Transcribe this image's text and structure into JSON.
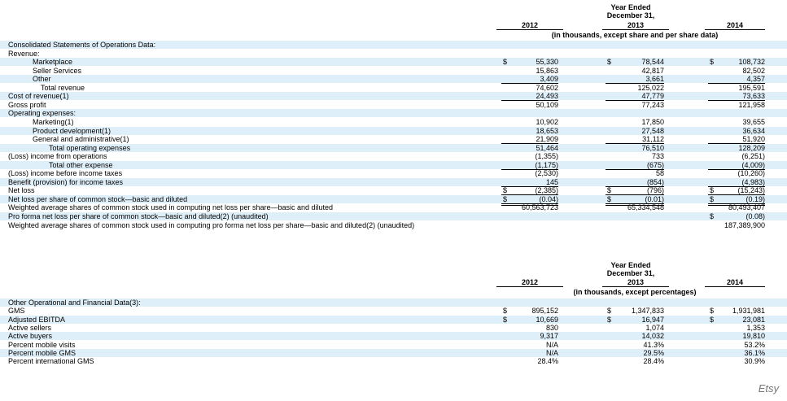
{
  "table1": {
    "header_line1": "Year Ended",
    "header_line2": "December 31,",
    "years": [
      "2012",
      "2013",
      "2014"
    ],
    "units": "(in thousands, except share and per share data)",
    "rows": [
      {
        "label": "Consolidated Statements of Operations Data:",
        "indent": 0,
        "values": [
          "",
          "",
          ""
        ],
        "dollar": false,
        "shade": true,
        "rule": ""
      },
      {
        "label": "Revenue:",
        "indent": 0,
        "values": [
          "",
          "",
          ""
        ],
        "dollar": false,
        "shade": false,
        "rule": ""
      },
      {
        "label": "Marketplace",
        "indent": 2,
        "values": [
          "55,330",
          "78,544",
          "108,732"
        ],
        "dollar": true,
        "shade": true,
        "rule": ""
      },
      {
        "label": "Seller Services",
        "indent": 2,
        "values": [
          "15,863",
          "42,817",
          "82,502"
        ],
        "dollar": false,
        "shade": false,
        "rule": ""
      },
      {
        "label": "Other",
        "indent": 2,
        "values": [
          "3,409",
          "3,661",
          "4,357"
        ],
        "dollar": false,
        "shade": true,
        "rule": "ul"
      },
      {
        "label": "Total revenue",
        "indent": 3,
        "values": [
          "74,602",
          "125,022",
          "195,591"
        ],
        "dollar": false,
        "shade": false,
        "rule": ""
      },
      {
        "label": "Cost of revenue(1)",
        "indent": 0,
        "values": [
          "24,493",
          "47,779",
          "73,633"
        ],
        "dollar": false,
        "shade": true,
        "rule": "ul"
      },
      {
        "label": "Gross profit",
        "indent": 0,
        "values": [
          "50,109",
          "77,243",
          "121,958"
        ],
        "dollar": false,
        "shade": false,
        "rule": ""
      },
      {
        "label": "Operating expenses:",
        "indent": 0,
        "values": [
          "",
          "",
          ""
        ],
        "dollar": false,
        "shade": true,
        "rule": ""
      },
      {
        "label": "Marketing(1)",
        "indent": 2,
        "values": [
          "10,902",
          "17,850",
          "39,655"
        ],
        "dollar": false,
        "shade": false,
        "rule": ""
      },
      {
        "label": "Product development(1)",
        "indent": 2,
        "values": [
          "18,653",
          "27,548",
          "36,634"
        ],
        "dollar": false,
        "shade": true,
        "rule": ""
      },
      {
        "label": "General and administrative(1)",
        "indent": 2,
        "values": [
          "21,909",
          "31,112",
          "51,920"
        ],
        "dollar": false,
        "shade": false,
        "rule": "ul"
      },
      {
        "label": "Total operating expenses",
        "indent": 4,
        "values": [
          "51,464",
          "76,510",
          "128,209"
        ],
        "dollar": false,
        "shade": true,
        "rule": ""
      },
      {
        "label": "(Loss) income from operations",
        "indent": 0,
        "values": [
          "(1,355)",
          "733",
          "(6,251)"
        ],
        "dollar": false,
        "shade": false,
        "rule": ""
      },
      {
        "label": "Total other expense",
        "indent": 4,
        "values": [
          "(1,175)",
          "(675)",
          "(4,009)"
        ],
        "dollar": false,
        "shade": true,
        "rule": "ul"
      },
      {
        "label": "(Loss) income before income taxes",
        "indent": 0,
        "values": [
          "(2,530)",
          "58",
          "(10,260)"
        ],
        "dollar": false,
        "shade": false,
        "rule": ""
      },
      {
        "label": "Benefit (provision) for income taxes",
        "indent": 0,
        "values": [
          "145",
          "(854)",
          "(4,983)"
        ],
        "dollar": false,
        "shade": true,
        "rule": "ul"
      },
      {
        "label": "Net loss",
        "indent": 0,
        "values": [
          "(2,385)",
          "(796)",
          "(15,243)"
        ],
        "dollar": true,
        "shade": false,
        "rule": "dul"
      },
      {
        "label": "Net loss per share of common stock—basic and diluted",
        "indent": 0,
        "values": [
          "(0.04)",
          "(0.01)",
          "(0.19)"
        ],
        "dollar": true,
        "shade": true,
        "rule": "dul"
      },
      {
        "label": "Weighted average shares of common stock used in computing net loss per share—basic and diluted",
        "indent": 0,
        "values": [
          "60,563,723",
          "65,334,548",
          "80,493,407"
        ],
        "dollar": false,
        "shade": false,
        "rule": ""
      },
      {
        "label": "Pro forma net loss per share of common stock—basic and diluted(2) (unaudited)",
        "indent": 0,
        "values": [
          "",
          "",
          "(0.08)"
        ],
        "dollar": true,
        "dollar_only_last": true,
        "shade": true,
        "rule": ""
      },
      {
        "label": "Weighted average shares of common stock used in computing pro forma net loss per share—basic and diluted(2) (unaudited)",
        "indent": 0,
        "values": [
          "",
          "",
          "187,389,900"
        ],
        "dollar": false,
        "shade": false,
        "rule": ""
      }
    ]
  },
  "table2": {
    "header_line1": "Year Ended",
    "header_line2": "December 31,",
    "years": [
      "2012",
      "2013",
      "2014"
    ],
    "units": "(in thousands, except percentages)",
    "rows": [
      {
        "label": "Other Operational and Financial Data(3):",
        "indent": 0,
        "values": [
          "",
          "",
          ""
        ],
        "dollar": false,
        "shade": true,
        "rule": ""
      },
      {
        "label": "GMS",
        "indent": 0,
        "values": [
          "895,152",
          "1,347,833",
          "1,931,981"
        ],
        "dollar": true,
        "shade": false,
        "rule": ""
      },
      {
        "label": "Adjusted EBITDA",
        "indent": 0,
        "values": [
          "10,669",
          "16,947",
          "23,081"
        ],
        "dollar": true,
        "shade": true,
        "rule": ""
      },
      {
        "label": "Active sellers",
        "indent": 0,
        "values": [
          "830",
          "1,074",
          "1,353"
        ],
        "dollar": false,
        "shade": false,
        "rule": ""
      },
      {
        "label": "Active buyers",
        "indent": 0,
        "values": [
          "9,317",
          "14,032",
          "19,810"
        ],
        "dollar": false,
        "shade": true,
        "rule": ""
      },
      {
        "label": "Percent mobile visits",
        "indent": 0,
        "values": [
          "N/A",
          "41.3%",
          "53.2%"
        ],
        "dollar": false,
        "shade": false,
        "rule": ""
      },
      {
        "label": "Percent mobile GMS",
        "indent": 0,
        "values": [
          "N/A",
          "29.5%",
          "36.1%"
        ],
        "dollar": false,
        "shade": true,
        "rule": ""
      },
      {
        "label": "Percent international GMS",
        "indent": 0,
        "values": [
          "28.4%",
          "28.4%",
          "30.9%"
        ],
        "dollar": false,
        "shade": false,
        "rule": ""
      }
    ]
  },
  "currency_symbol": "$",
  "watermark": "Etsy"
}
